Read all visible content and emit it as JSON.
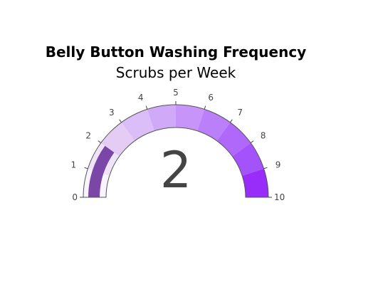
{
  "chart_data": {
    "type": "gauge",
    "title": "Belly Button Washing Frequency",
    "subtitle": "Scrubs per Week",
    "value": 2,
    "range": [
      0,
      10
    ],
    "ticks": [
      "0",
      "1",
      "2",
      "3",
      "4",
      "5",
      "6",
      "7",
      "8",
      "9",
      "10"
    ],
    "steps": [
      {
        "range": [
          0,
          1
        ],
        "color": "#f8f3fc"
      },
      {
        "range": [
          1,
          2
        ],
        "color": "#efe3f8"
      },
      {
        "range": [
          2,
          3
        ],
        "color": "#e5ccf5"
      },
      {
        "range": [
          3,
          4
        ],
        "color": "#dbbef8"
      },
      {
        "range": [
          4,
          5
        ],
        "color": "#d0aaf9"
      },
      {
        "range": [
          5,
          6
        ],
        "color": "#c794f9"
      },
      {
        "range": [
          6,
          7
        ],
        "color": "#bb7ff9"
      },
      {
        "range": [
          7,
          8
        ],
        "color": "#b068fa"
      },
      {
        "range": [
          8,
          9
        ],
        "color": "#a453fa"
      },
      {
        "range": [
          9,
          10
        ],
        "color": "#982dfa"
      }
    ],
    "bar_color": "#7a47a7",
    "border_color": "#555555"
  }
}
